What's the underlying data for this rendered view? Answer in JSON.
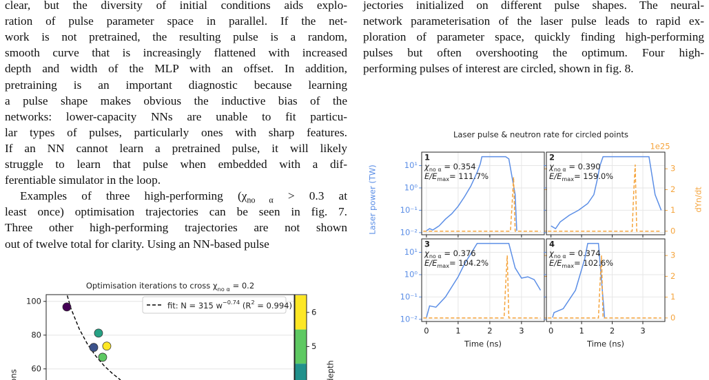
{
  "left_column": {
    "paragraphs": [
      {
        "lines": [
          "clear, but the diversity of initial conditions aids explo-",
          "ration of pulse parameter space in parallel. If the net-",
          "work is not pretrained, the resulting pulse is a random,",
          "smooth curve that is increasingly flattened with increased",
          "depth and width of the MLP with an offset. In addition,",
          "pretraining is an important diagnostic because learning",
          "a pulse shape makes obvious the inductive bias of the",
          "networks: lower-capacity NNs are unable to fit particu-",
          "lar types of pulses, particularly ones with sharp features.",
          "If an NN cannot learn a pretrained pulse, it will likely",
          "struggle to learn that pulse when embedded with a dif-",
          "ferentiable simulator in the loop."
        ]
      },
      {
        "lines": [
          [
            "Examples of three high-performing (χ",
            "no α",
            " > 0.3 at"
          ],
          "least once) optimisation trajectories can be seen in fig. 7.",
          "Three other high-performing trajectories are not shown",
          "out of twelve total for clarity. Using an NN-based pulse"
        ]
      }
    ]
  },
  "right_column": {
    "caption_lines": [
      "jectories initialized on different pulse shapes. The neural-",
      "network parameterisation of the laser pulse leads to rapid ex-",
      "ploration of parameter space, quickly finding high-performing",
      "pulses but often overshooting the optimum. Four high-",
      "performing pulses of interest are circled, shown in fig. 8."
    ]
  },
  "left_figure": {
    "type": "scatter",
    "title": [
      "Optimisation iterations to cross χ",
      "no α",
      " = 0.2"
    ],
    "ylabel": "ions",
    "colorbar_label": "depth",
    "legend": [
      "fit: N = 315 w",
      "−0.74",
      "  (R",
      "2",
      " = 0.994)"
    ],
    "xlim": [
      2.0,
      32.0
    ],
    "ylim": [
      53.4,
      104
    ],
    "yticks": [
      60,
      80,
      100
    ],
    "grid": true,
    "x": [
      4.5,
      8.33,
      7.75,
      9.33,
      8.83
    ],
    "values": [
      96.7,
      81.2,
      72.7,
      73.5,
      66.9
    ],
    "colors": [
      "#440154",
      "#26a184",
      "#3b528b",
      "#fde725",
      "#5ec962"
    ],
    "fit": {
      "color": "#000000",
      "x": [
        4,
        5,
        6,
        7,
        8,
        9,
        10,
        11
      ],
      "values": [
        112.9,
        95.8,
        83.7,
        74.6,
        67.6,
        61.9,
        57.3,
        53.4
      ]
    },
    "colorbar": {
      "lim": [
        4.02,
        6.52
      ],
      "ticks": [
        5,
        6
      ],
      "bands": [
        {
          "value": 4,
          "color": "#21918c"
        },
        {
          "value": 5,
          "color": "#5ec962"
        },
        {
          "value": 6,
          "color": "#fde725"
        }
      ]
    }
  },
  "right_figure": {
    "type": "line",
    "title": "Laser pulse & neutron rate for circled points",
    "y2_offset_label": "1e25",
    "xlabel": "Time (ns)",
    "ylabel": "Laser power (TW)",
    "y2label": "dYn/dt",
    "yscale": "log",
    "grid": true,
    "xlim": [
      -0.15,
      3.72
    ],
    "xticks": [
      0,
      1,
      2,
      3
    ],
    "ylim": [
      0.008,
      40
    ],
    "yticks": [
      {
        "value": 0.01,
        "label": "10⁻²"
      },
      {
        "value": 0.1,
        "label": "10⁻¹"
      },
      {
        "value": 1,
        "label": "10⁰"
      },
      {
        "value": 10,
        "label": "10¹"
      }
    ],
    "y2lim": [
      -0.17,
      3.8
    ],
    "y2ticks": [
      0,
      1,
      2,
      3
    ],
    "chi_symbol": "χ",
    "chi_subscript": "no α",
    "energy_symbol": "E/E",
    "energy_subscript": "max",
    "panels": [
      {
        "label": "1",
        "chi_text": " = 0.354",
        "energy_text": "= 111.7%",
        "series": [
          {
            "color": "#5b8ee6",
            "x": [
              0,
              0.1,
              0.2,
              0.4,
              0.6,
              0.8,
              1.0,
              1.2,
              1.4,
              1.6,
              1.7,
              1.75,
              2.5,
              2.6,
              2.8,
              2.85
            ],
            "values": [
              0.012,
              0.015,
              0.013,
              0.02,
              0.04,
              0.07,
              0.15,
              0.4,
              1.2,
              5,
              12,
              25,
              25,
              20,
              0.5,
              0.012
            ]
          },
          {
            "color": "#f5a33a",
            "axis": "y2",
            "x": [
              -0.1,
              2.65,
              2.7,
              2.75,
              2.8,
              3.6
            ],
            "values": [
              0,
              0,
              1.2,
              2.6,
              0,
              0
            ]
          }
        ]
      },
      {
        "label": "2",
        "chi_text": " = 0.390",
        "energy_text": "= 159.0%",
        "series": [
          {
            "color": "#5b8ee6",
            "x": [
              0,
              0.15,
              0.3,
              0.6,
              0.9,
              1.2,
              1.4,
              1.5,
              1.6,
              1.7,
              3.2,
              3.4,
              3.6
            ],
            "values": [
              0.02,
              0.015,
              0.03,
              0.06,
              0.1,
              0.2,
              0.5,
              2,
              10,
              25,
              25,
              0.5,
              0.1
            ]
          },
          {
            "color": "#f5a33a",
            "axis": "y2",
            "x": [
              -0.1,
              2.65,
              2.7,
              2.75,
              2.8,
              3.6
            ],
            "values": [
              0,
              0,
              1.8,
              3.2,
              0,
              0
            ]
          }
        ]
      },
      {
        "label": "3",
        "chi_text": " = 0.376",
        "energy_text": "= 104.2%",
        "series": [
          {
            "color": "#5b8ee6",
            "x": [
              0,
              0.1,
              0.3,
              0.6,
              1.0,
              1.2,
              1.6,
              2.6,
              2.8,
              3.0,
              3.2,
              3.4,
              3.6
            ],
            "values": [
              0.012,
              0.04,
              0.035,
              0.1,
              0.8,
              3,
              25,
              25,
              2,
              0.7,
              0.8,
              0.6,
              0.2
            ]
          },
          {
            "color": "#f5a33a",
            "axis": "y2",
            "x": [
              -0.1,
              2.45,
              2.5,
              2.55,
              2.6,
              3.6
            ],
            "values": [
              0,
              0,
              1.6,
              3.0,
              0,
              0
            ]
          }
        ]
      },
      {
        "label": "4",
        "chi_text": " = 0.374",
        "energy_text": "= 102.6%",
        "series": [
          {
            "color": "#5b8ee6",
            "x": [
              0.05,
              0.1,
              0.4,
              0.8,
              1.1,
              1.2,
              1.55,
              1.75
            ],
            "values": [
              0.012,
              0.02,
              0.03,
              0.2,
              5,
              25,
              25,
              0.012
            ]
          },
          {
            "color": "#f5a33a",
            "axis": "y2",
            "x": [
              -0.1,
              1.55,
              1.6,
              1.65,
              1.7,
              3.6
            ],
            "values": [
              0,
              0,
              1.6,
              3.0,
              0,
              0
            ]
          }
        ]
      }
    ]
  }
}
